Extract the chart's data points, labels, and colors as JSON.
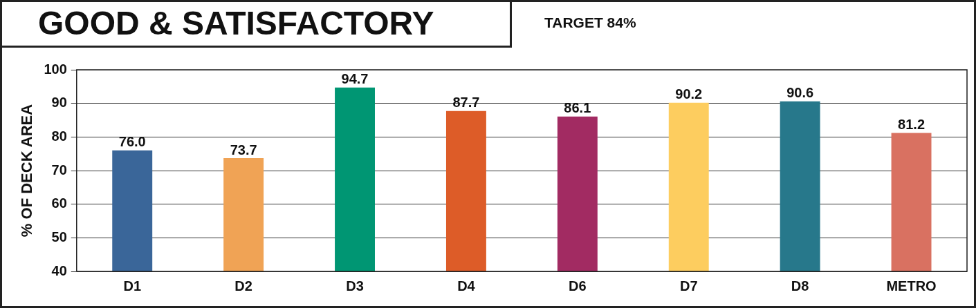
{
  "chart_data": {
    "type": "bar",
    "title": "GOOD & SATISFACTORY",
    "subtitle": "TARGET 84%",
    "ylabel": "% OF DECK AREA",
    "categories": [
      "D1",
      "D2",
      "D3",
      "D4",
      "D6",
      "D7",
      "D8",
      "METRO"
    ],
    "values": [
      76.0,
      73.7,
      94.7,
      87.7,
      86.1,
      90.2,
      90.6,
      81.2
    ],
    "colors": [
      "#3a6699",
      "#f0a355",
      "#009673",
      "#dd5c28",
      "#a22b62",
      "#fdcd5f",
      "#27788b",
      "#d97161"
    ],
    "value_labels": [
      "76.0",
      "73.7",
      "94.7",
      "87.7",
      "86.1",
      "90.2",
      "90.6",
      "81.2"
    ],
    "ylim": [
      40,
      100
    ],
    "yticks": [
      40,
      50,
      60,
      70,
      80,
      90,
      100
    ],
    "grid": "y"
  }
}
